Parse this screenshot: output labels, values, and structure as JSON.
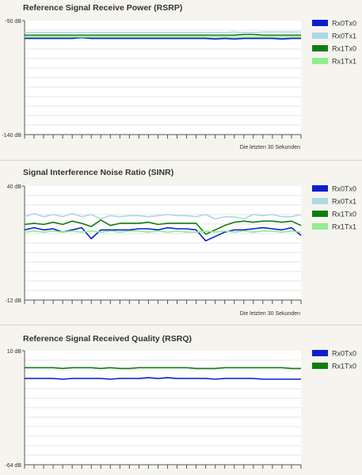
{
  "chart_data": [
    {
      "type": "line",
      "title": "Reference Signal Receive Power (RSRP)",
      "ylabel_top": "-50 dB",
      "ylabel_bottom": "-140 dB",
      "ylim": [
        -140,
        -50
      ],
      "x_caption": "Die letzten 30 Sekunden",
      "x": [
        1,
        2,
        3,
        4,
        5,
        6,
        7,
        8,
        9,
        10,
        11,
        12,
        13,
        14,
        15,
        16,
        17,
        18,
        19,
        20,
        21,
        22,
        23,
        24,
        25,
        26,
        27,
        28,
        29,
        30
      ],
      "grid": true,
      "legend_position": "right",
      "series": [
        {
          "name": "Rx0Tx0",
          "color": "#0a1ecf",
          "values": [
            -64,
            -64,
            -64,
            -64,
            -64,
            -64,
            -63.5,
            -64,
            -64,
            -64,
            -64,
            -64,
            -64,
            -64,
            -64,
            -64,
            -64,
            -64,
            -64,
            -64,
            -64.5,
            -64,
            -64.5,
            -64,
            -64,
            -64,
            -64,
            -64.5,
            -64,
            -64
          ]
        },
        {
          "name": "Rx0Tx1",
          "color": "#add8e6",
          "values": [
            -59.5,
            -59.5,
            -59.5,
            -59.5,
            -59.5,
            -59.5,
            -59.5,
            -59.5,
            -59.5,
            -59.5,
            -59.5,
            -59.5,
            -59.5,
            -59.5,
            -59.5,
            -59.5,
            -59.5,
            -59.5,
            -59.5,
            -59.5,
            -59.5,
            -59.5,
            -59,
            -59.5,
            -59.5,
            -59,
            -59,
            -59,
            -59,
            -59
          ]
        },
        {
          "name": "Rx1Tx0",
          "color": "#107c10",
          "values": [
            -61.5,
            -61.5,
            -61.5,
            -61.5,
            -61.5,
            -61.5,
            -61.5,
            -61.5,
            -61.5,
            -61.5,
            -61.5,
            -61.5,
            -61.5,
            -61.5,
            -61.5,
            -61.5,
            -61.5,
            -61.5,
            -61.5,
            -61.5,
            -61.5,
            -61.5,
            -61.5,
            -61,
            -61,
            -61.5,
            -61.5,
            -61.5,
            -61.5,
            -61.5
          ]
        },
        {
          "name": "Rx1Tx1",
          "color": "#90ee90",
          "values": [
            -63,
            -63,
            -63,
            -63,
            -63,
            -63,
            -63,
            -63,
            -63,
            -63,
            -63,
            -63,
            -63,
            -63,
            -63,
            -63,
            -63,
            -63,
            -63,
            -63,
            -63,
            -63,
            -63,
            -63,
            -63,
            -63,
            -63,
            -63,
            -63,
            -63
          ]
        }
      ]
    },
    {
      "type": "line",
      "title": "Signal Interference Noise Ratio (SINR)",
      "ylabel_top": "40 dB",
      "ylabel_bottom": "-12 dB",
      "ylim": [
        -12,
        40
      ],
      "x_caption": "Die letzten 30 Sekunden",
      "x": [
        1,
        2,
        3,
        4,
        5,
        6,
        7,
        8,
        9,
        10,
        11,
        12,
        13,
        14,
        15,
        16,
        17,
        18,
        19,
        20,
        21,
        22,
        23,
        24,
        25,
        26,
        27,
        28,
        29,
        30
      ],
      "grid": true,
      "legend_position": "right",
      "series": [
        {
          "name": "Rx0Tx0",
          "color": "#0a1ecf",
          "values": [
            20,
            21,
            20,
            20.5,
            19,
            20,
            21,
            16,
            20,
            20,
            20,
            20,
            20.5,
            20.5,
            20,
            21,
            20.5,
            20.5,
            20,
            15,
            17,
            19,
            20,
            20,
            20.5,
            21,
            20.5,
            20,
            21,
            17.5
          ]
        },
        {
          "name": "Rx0Tx1",
          "color": "#add8e6",
          "values": [
            26,
            27.5,
            26,
            27,
            26,
            27.5,
            26,
            27,
            25,
            26.5,
            26,
            26.5,
            26.5,
            26,
            26.5,
            27,
            26.5,
            26.5,
            26,
            27,
            25,
            26,
            26,
            25,
            27,
            26.5,
            27,
            26,
            26,
            27
          ]
        },
        {
          "name": "Rx1Tx0",
          "color": "#107c10",
          "values": [
            22.5,
            23,
            22.5,
            23.5,
            22.5,
            24,
            23,
            21.5,
            24.5,
            22,
            23,
            23,
            23,
            23.5,
            22.5,
            23,
            23,
            23,
            23,
            18,
            20,
            22,
            23.5,
            24,
            23.5,
            24,
            24,
            23.5,
            24,
            22
          ]
        },
        {
          "name": "Rx1Tx1",
          "color": "#90ee90",
          "values": [
            19,
            19.5,
            19,
            19.5,
            19,
            19.5,
            19,
            19.5,
            19,
            19.5,
            19,
            19.5,
            19.5,
            19,
            19.5,
            19,
            19.5,
            19,
            19,
            19.5,
            19,
            19.5,
            19,
            19.5,
            19,
            19.5,
            19.5,
            19,
            19.5,
            19
          ]
        }
      ]
    },
    {
      "type": "line",
      "title": "Reference Signal Received Quality (RSRQ)",
      "ylabel_top": "10 dB",
      "ylabel_bottom": "-64 dB",
      "ylim": [
        -64,
        10
      ],
      "x": [
        1,
        2,
        3,
        4,
        5,
        6,
        7,
        8,
        9,
        10,
        11,
        12,
        13,
        14,
        15,
        16,
        17,
        18,
        19,
        20,
        21,
        22,
        23,
        24,
        25,
        26,
        27,
        28,
        29,
        30
      ],
      "grid": true,
      "legend_position": "right",
      "series": [
        {
          "name": "Rx0Tx0",
          "color": "#0a1ecf",
          "values": [
            -8,
            -8,
            -8,
            -8,
            -8.5,
            -8,
            -8,
            -8,
            -8,
            -8.5,
            -8,
            -8,
            -8,
            -7.5,
            -8,
            -7.5,
            -8,
            -8,
            -8,
            -8,
            -8.5,
            -8,
            -8,
            -8,
            -8,
            -8.5,
            -8.5,
            -8.5,
            -8.5,
            -8.5
          ]
        },
        {
          "name": "Rx1Tx0",
          "color": "#107c10",
          "values": [
            -1,
            -1,
            -1,
            -1,
            -1.5,
            -1,
            -1,
            -1,
            -1.5,
            -1,
            -1.5,
            -1.5,
            -1,
            -1,
            -1,
            -1,
            -1,
            -1,
            -1.5,
            -1.5,
            -1.5,
            -1,
            -1,
            -1,
            -1,
            -1,
            -1,
            -1,
            -1.5,
            -1.5
          ]
        }
      ]
    }
  ]
}
